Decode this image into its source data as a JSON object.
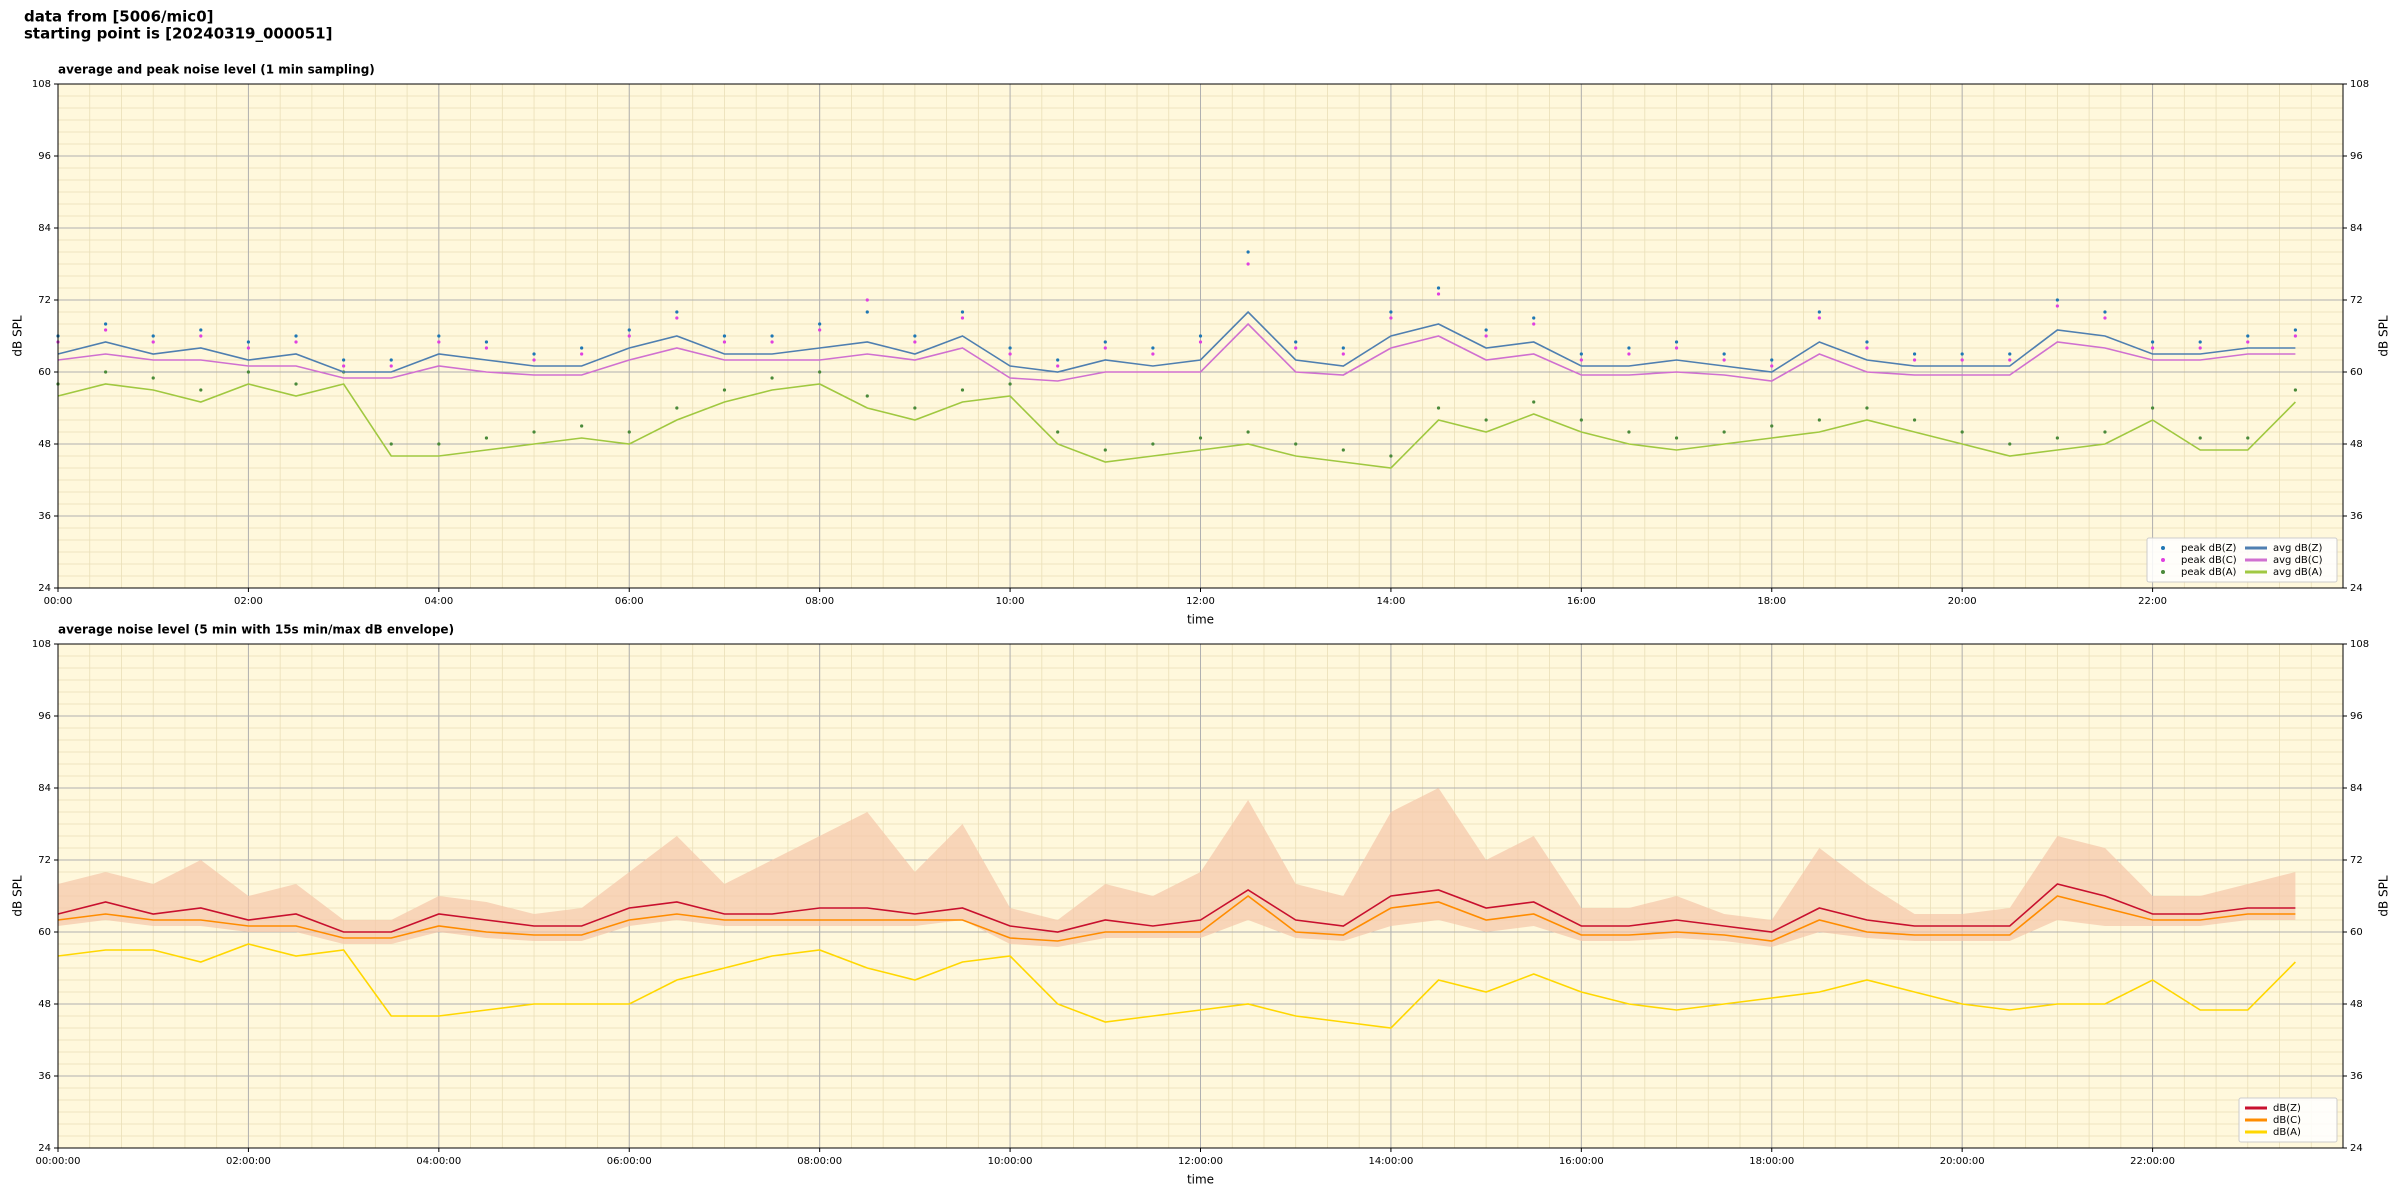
{
  "header": {
    "lines": [
      "data from [5006/mic0]",
      "starting point is [20240319_000051]"
    ]
  },
  "chart_data": [
    {
      "type": "line",
      "title": "average and peak noise level (1 min sampling)",
      "xlabel": "time",
      "ylabel": "dB SPL",
      "xlim": [
        0,
        24
      ],
      "ylim": [
        24,
        108
      ],
      "xticks": [
        {
          "value": 0,
          "label": "00:00"
        },
        {
          "value": 2,
          "label": "02:00"
        },
        {
          "value": 4,
          "label": "04:00"
        },
        {
          "value": 6,
          "label": "06:00"
        },
        {
          "value": 8,
          "label": "08:00"
        },
        {
          "value": 10,
          "label": "10:00"
        },
        {
          "value": 12,
          "label": "12:00"
        },
        {
          "value": 14,
          "label": "14:00"
        },
        {
          "value": 16,
          "label": "16:00"
        },
        {
          "value": 18,
          "label": "18:00"
        },
        {
          "value": 20,
          "label": "20:00"
        },
        {
          "value": 22,
          "label": "22:00"
        }
      ],
      "yticks": [
        24,
        36,
        48,
        60,
        72,
        84,
        96,
        108
      ],
      "grid": true,
      "legend": "lower right",
      "legend_ncol": 2,
      "background": "#fff8dc",
      "x": [
        0,
        0.5,
        1,
        1.5,
        2,
        2.5,
        3,
        3.5,
        4,
        4.5,
        5,
        5.5,
        6,
        6.5,
        7,
        7.5,
        8,
        8.5,
        9,
        9.5,
        10,
        10.5,
        11,
        11.5,
        12,
        12.5,
        13,
        13.5,
        14,
        14.5,
        15,
        15.5,
        16,
        16.5,
        17,
        17.5,
        18,
        18.5,
        19,
        19.5,
        20,
        20.5,
        21,
        21.5,
        22,
        22.5,
        23,
        23.5
      ],
      "series": [
        {
          "name": "peak dB(Z)",
          "style": "scatter",
          "color": "#1f77b4",
          "values": [
            66,
            68,
            66,
            67,
            65,
            66,
            62,
            62,
            66,
            65,
            63,
            64,
            67,
            70,
            66,
            66,
            68,
            70,
            66,
            70,
            64,
            62,
            65,
            64,
            66,
            80,
            65,
            64,
            70,
            74,
            67,
            69,
            63,
            64,
            65,
            63,
            62,
            70,
            65,
            63,
            63,
            63,
            72,
            70,
            65,
            65,
            66,
            67
          ]
        },
        {
          "name": "peak dB(C)",
          "style": "scatter",
          "color": "#e040e0",
          "values": [
            65,
            67,
            65,
            66,
            64,
            65,
            61,
            61,
            65,
            64,
            62,
            63,
            66,
            69,
            65,
            65,
            67,
            72,
            65,
            69,
            63,
            61,
            64,
            63,
            65,
            78,
            64,
            63,
            69,
            73,
            66,
            68,
            62,
            63,
            64,
            62,
            61,
            69,
            64,
            62,
            62,
            62,
            71,
            69,
            64,
            64,
            65,
            66
          ]
        },
        {
          "name": "peak dB(A)",
          "style": "scatter",
          "color": "#4a8a3a",
          "values": [
            58,
            60,
            59,
            57,
            60,
            58,
            60,
            48,
            48,
            49,
            50,
            51,
            50,
            54,
            57,
            59,
            60,
            56,
            54,
            57,
            58,
            50,
            47,
            48,
            49,
            50,
            48,
            47,
            46,
            54,
            52,
            55,
            52,
            50,
            49,
            50,
            51,
            52,
            54,
            52,
            50,
            48,
            49,
            50,
            54,
            49,
            49,
            57
          ]
        },
        {
          "name": "avg dB(Z)",
          "style": "line",
          "color": "#4f7fb0",
          "values": [
            63,
            65,
            63,
            64,
            62,
            63,
            60,
            60,
            63,
            62,
            61,
            61,
            64,
            66,
            63,
            63,
            64,
            65,
            63,
            66,
            61,
            60,
            62,
            61,
            62,
            70,
            62,
            61,
            66,
            68,
            64,
            65,
            61,
            61,
            62,
            61,
            60,
            65,
            62,
            61,
            61,
            61,
            67,
            66,
            63,
            63,
            64,
            64
          ]
        },
        {
          "name": "avg dB(C)",
          "style": "line",
          "color": "#d070d0",
          "values": [
            62,
            63,
            62,
            62,
            61,
            61,
            59,
            59,
            61,
            60,
            59.5,
            59.5,
            62,
            64,
            62,
            62,
            62,
            63,
            62,
            64,
            59,
            58.5,
            60,
            60,
            60,
            68,
            60,
            59.5,
            64,
            66,
            62,
            63,
            59.5,
            59.5,
            60,
            59.5,
            58.5,
            63,
            60,
            59.5,
            59.5,
            59.5,
            65,
            64,
            62,
            62,
            63,
            63
          ]
        },
        {
          "name": "avg dB(A)",
          "style": "line",
          "color": "#a0c840",
          "values": [
            56,
            58,
            57,
            55,
            58,
            56,
            58,
            46,
            46,
            47,
            48,
            49,
            48,
            52,
            55,
            57,
            58,
            54,
            52,
            55,
            56,
            48,
            45,
            46,
            47,
            48,
            46,
            45,
            44,
            52,
            50,
            53,
            50,
            48,
            47,
            48,
            49,
            50,
            52,
            50,
            48,
            46,
            47,
            48,
            52,
            47,
            47,
            55
          ]
        }
      ]
    },
    {
      "type": "line",
      "title": "average noise level (5 min with 15s min/max dB envelope)",
      "xlabel": "time",
      "ylabel": "dB SPL",
      "xlim": [
        0,
        24
      ],
      "ylim": [
        24,
        108
      ],
      "xticks": [
        {
          "value": 0,
          "label": "00:00:00"
        },
        {
          "value": 2,
          "label": "02:00:00"
        },
        {
          "value": 4,
          "label": "04:00:00"
        },
        {
          "value": 6,
          "label": "06:00:00"
        },
        {
          "value": 8,
          "label": "08:00:00"
        },
        {
          "value": 10,
          "label": "10:00:00"
        },
        {
          "value": 12,
          "label": "12:00:00"
        },
        {
          "value": 14,
          "label": "14:00:00"
        },
        {
          "value": 16,
          "label": "16:00:00"
        },
        {
          "value": 18,
          "label": "18:00:00"
        },
        {
          "value": 20,
          "label": "20:00:00"
        },
        {
          "value": 22,
          "label": "22:00:00"
        }
      ],
      "yticks": [
        24,
        36,
        48,
        60,
        72,
        84,
        96,
        108
      ],
      "grid": true,
      "legend": "lower right",
      "legend_ncol": 1,
      "background": "#fff8dc",
      "x": [
        0,
        0.5,
        1,
        1.5,
        2,
        2.5,
        3,
        3.5,
        4,
        4.5,
        5,
        5.5,
        6,
        6.5,
        7,
        7.5,
        8,
        8.5,
        9,
        9.5,
        10,
        10.5,
        11,
        11.5,
        12,
        12.5,
        13,
        13.5,
        14,
        14.5,
        15,
        15.5,
        16,
        16.5,
        17,
        17.5,
        18,
        18.5,
        19,
        19.5,
        20,
        20.5,
        21,
        21.5,
        22,
        22.5,
        23,
        23.5
      ],
      "envelope": {
        "color": "#f5c6a8",
        "upper": [
          68,
          70,
          68,
          72,
          66,
          68,
          62,
          62,
          66,
          65,
          63,
          64,
          70,
          76,
          68,
          72,
          76,
          80,
          70,
          78,
          64,
          62,
          68,
          66,
          70,
          82,
          68,
          66,
          80,
          84,
          72,
          76,
          64,
          64,
          66,
          63,
          62,
          74,
          68,
          63,
          63,
          64,
          76,
          74,
          66,
          66,
          68,
          70
        ],
        "lower": [
          61,
          62,
          61,
          61,
          60,
          60,
          58,
          58,
          60,
          59,
          58.5,
          58.5,
          61,
          62,
          61,
          61,
          61,
          61,
          61,
          62,
          58,
          57.5,
          59,
          59,
          59,
          62,
          59,
          58.5,
          61,
          62,
          60,
          61,
          58.5,
          58.5,
          59,
          58.5,
          57.5,
          60,
          59,
          58.5,
          58.5,
          58.5,
          62,
          61,
          61,
          61,
          62,
          62
        ]
      },
      "series": [
        {
          "name": "dB(Z)",
          "style": "line",
          "color": "#c8102e",
          "values": [
            63,
            65,
            63,
            64,
            62,
            63,
            60,
            60,
            63,
            62,
            61,
            61,
            64,
            65,
            63,
            63,
            64,
            64,
            63,
            64,
            61,
            60,
            62,
            61,
            62,
            67,
            62,
            61,
            66,
            67,
            64,
            65,
            61,
            61,
            62,
            61,
            60,
            64,
            62,
            61,
            61,
            61,
            68,
            66,
            63,
            63,
            64,
            64
          ]
        },
        {
          "name": "dB(C)",
          "style": "line",
          "color": "#ff8c00",
          "values": [
            62,
            63,
            62,
            62,
            61,
            61,
            59,
            59,
            61,
            60,
            59.5,
            59.5,
            62,
            63,
            62,
            62,
            62,
            62,
            62,
            62,
            59,
            58.5,
            60,
            60,
            60,
            66,
            60,
            59.5,
            64,
            65,
            62,
            63,
            59.5,
            59.5,
            60,
            59.5,
            58.5,
            62,
            60,
            59.5,
            59.5,
            59.5,
            66,
            64,
            62,
            62,
            63,
            63
          ]
        },
        {
          "name": "dB(A)",
          "style": "line",
          "color": "#ffd700",
          "values": [
            56,
            57,
            57,
            55,
            58,
            56,
            57,
            46,
            46,
            47,
            48,
            48,
            48,
            52,
            54,
            56,
            57,
            54,
            52,
            55,
            56,
            48,
            45,
            46,
            47,
            48,
            46,
            45,
            44,
            52,
            50,
            53,
            50,
            48,
            47,
            48,
            49,
            50,
            52,
            50,
            48,
            47,
            48,
            48,
            52,
            47,
            47,
            55
          ]
        }
      ]
    }
  ]
}
